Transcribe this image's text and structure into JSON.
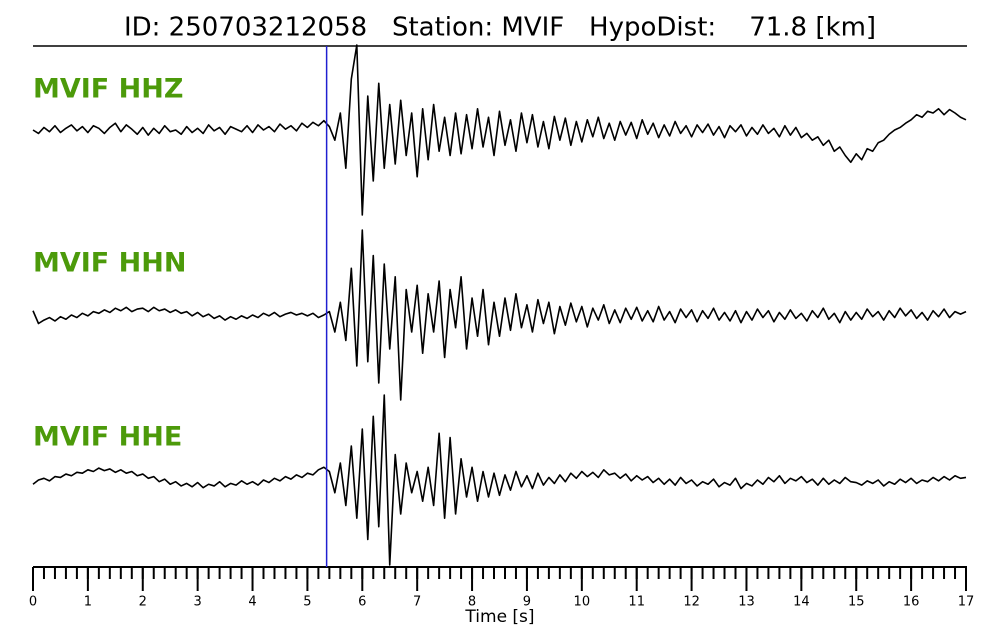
{
  "chart_data": {
    "type": "seismogram",
    "title": "ID: 250703212058   Station: MVIF   HypoDist:    71.8 [km]",
    "xlabel": "Time [s]",
    "xlim": [
      0,
      17
    ],
    "xticks": [
      0,
      1,
      2,
      3,
      4,
      5,
      6,
      7,
      8,
      9,
      10,
      11,
      12,
      13,
      14,
      15,
      16,
      17
    ],
    "xminor_step": 0.2,
    "ylim": [
      -100,
      100
    ],
    "pick_time": 5.35,
    "pick_color": "#1f1fd0",
    "label_color": "#4c9a0a",
    "x": [
      0,
      0.1,
      0.2,
      0.3,
      0.4,
      0.5,
      0.6,
      0.7,
      0.8,
      0.9,
      1,
      1.1,
      1.2,
      1.3,
      1.4,
      1.5,
      1.6,
      1.7,
      1.8,
      1.9,
      2,
      2.1,
      2.2,
      2.3,
      2.4,
      2.5,
      2.6,
      2.7,
      2.8,
      2.9,
      3,
      3.1,
      3.2,
      3.3,
      3.4,
      3.5,
      3.6,
      3.7,
      3.8,
      3.9,
      4,
      4.1,
      4.2,
      4.3,
      4.4,
      4.5,
      4.6,
      4.7,
      4.8,
      4.9,
      5,
      5.1,
      5.2,
      5.3,
      5.4,
      5.5,
      5.6,
      5.7,
      5.8,
      5.9,
      6,
      6.1,
      6.2,
      6.3,
      6.4,
      6.5,
      6.6,
      6.7,
      6.8,
      6.9,
      7,
      7.1,
      7.2,
      7.3,
      7.4,
      7.5,
      7.6,
      7.7,
      7.8,
      7.9,
      8,
      8.1,
      8.2,
      8.3,
      8.4,
      8.5,
      8.6,
      8.7,
      8.8,
      8.9,
      9,
      9.1,
      9.2,
      9.3,
      9.4,
      9.5,
      9.6,
      9.7,
      9.8,
      9.9,
      10,
      10.1,
      10.2,
      10.3,
      10.4,
      10.5,
      10.6,
      10.7,
      10.8,
      10.9,
      11,
      11.1,
      11.2,
      11.3,
      11.4,
      11.5,
      11.6,
      11.7,
      11.8,
      11.9,
      12,
      12.1,
      12.2,
      12.3,
      12.4,
      12.5,
      12.6,
      12.7,
      12.8,
      12.9,
      13,
      13.1,
      13.2,
      13.3,
      13.4,
      13.5,
      13.6,
      13.7,
      13.8,
      13.9,
      14,
      14.1,
      14.2,
      14.3,
      14.4,
      14.5,
      14.6,
      14.7,
      14.8,
      14.9,
      15,
      15.1,
      15.2,
      15.3,
      15.4,
      15.5,
      15.6,
      15.7,
      15.8,
      15.9,
      16,
      16.1,
      16.2,
      16.3,
      16.4,
      16.5,
      16.6,
      16.7,
      16.8,
      16.9,
      17
    ],
    "series": [
      {
        "name": "MVIF HHZ",
        "color": "#000000",
        "values": [
          0,
          -4,
          3,
          -2,
          5,
          -3,
          2,
          6,
          -1,
          4,
          -3,
          5,
          2,
          -4,
          3,
          8,
          -2,
          6,
          1,
          -5,
          3,
          -6,
          2,
          -4,
          5,
          -2,
          0,
          -5,
          4,
          -3,
          2,
          -4,
          6,
          -1,
          3,
          -5,
          4,
          1,
          -2,
          5,
          -3,
          6,
          0,
          4,
          -2,
          7,
          1,
          5,
          -1,
          8,
          3,
          9,
          5,
          11,
          4,
          -12,
          20,
          -45,
          60,
          100,
          -100,
          40,
          -60,
          55,
          -45,
          30,
          -40,
          35,
          -30,
          20,
          -55,
          25,
          -35,
          30,
          -25,
          15,
          -30,
          20,
          -28,
          18,
          -22,
          25,
          -20,
          15,
          -30,
          22,
          -18,
          12,
          -25,
          20,
          -15,
          18,
          -20,
          10,
          -22,
          16,
          -12,
          14,
          -18,
          10,
          -14,
          12,
          -8,
          15,
          -10,
          8,
          -12,
          10,
          -6,
          9,
          -10,
          12,
          -5,
          8,
          -9,
          6,
          -7,
          10,
          -4,
          5,
          -8,
          6,
          -3,
          7,
          -6,
          4,
          -9,
          5,
          -2,
          6,
          -7,
          3,
          -5,
          6,
          -4,
          2,
          -8,
          5,
          -6,
          3,
          -9,
          -4,
          -12,
          -8,
          -18,
          -12,
          -25,
          -20,
          -30,
          -38,
          -28,
          -35,
          -22,
          -25,
          -15,
          -12,
          -5,
          0,
          3,
          8,
          12,
          18,
          15,
          22,
          20,
          25,
          18,
          24,
          20,
          15,
          12
        ]
      },
      {
        "name": "MVIF HHN",
        "color": "#000000",
        "values": [
          5,
          -10,
          -6,
          -3,
          -7,
          -2,
          -5,
          0,
          -3,
          2,
          -1,
          4,
          2,
          6,
          3,
          8,
          5,
          9,
          4,
          7,
          8,
          4,
          9,
          5,
          7,
          3,
          6,
          2,
          4,
          -1,
          3,
          -2,
          1,
          -4,
          -1,
          -6,
          -2,
          -5,
          -1,
          -4,
          0,
          -3,
          2,
          -1,
          3,
          -2,
          1,
          3,
          0,
          2,
          -1,
          2,
          -3,
          0,
          4,
          -20,
          15,
          -30,
          55,
          -60,
          100,
          -55,
          70,
          -80,
          60,
          -40,
          45,
          -100,
          30,
          -20,
          35,
          -45,
          25,
          -20,
          40,
          -50,
          30,
          -15,
          45,
          -40,
          20,
          -25,
          30,
          -35,
          15,
          -25,
          20,
          -18,
          25,
          -15,
          12,
          -20,
          18,
          -10,
          15,
          -22,
          10,
          -12,
          14,
          -8,
          10,
          -14,
          8,
          -6,
          12,
          -10,
          6,
          -9,
          8,
          -5,
          9,
          -7,
          5,
          -8,
          10,
          -6,
          4,
          -9,
          7,
          -3,
          6,
          -8,
          5,
          -4,
          8,
          -6,
          3,
          -7,
          5,
          -9,
          4,
          -6,
          7,
          -3,
          5,
          -8,
          3,
          -5,
          6,
          -4,
          2,
          -7,
          5,
          -3,
          8,
          -5,
          2,
          -9,
          4,
          -6,
          3,
          -5,
          7,
          -2,
          4,
          -6,
          5,
          -3,
          8,
          -1,
          6,
          -4,
          3,
          -6,
          5,
          -2,
          7,
          -3,
          4,
          1,
          4
        ]
      },
      {
        "name": "MVIF HHE",
        "color": "#000000",
        "values": [
          -5,
          0,
          2,
          -1,
          4,
          3,
          7,
          5,
          9,
          8,
          12,
          10,
          14,
          11,
          13,
          9,
          12,
          8,
          10,
          5,
          7,
          2,
          4,
          -2,
          1,
          -5,
          -2,
          -7,
          -4,
          -8,
          -3,
          -9,
          -5,
          -7,
          -2,
          -8,
          -4,
          -6,
          -1,
          -5,
          -2,
          -6,
          0,
          -3,
          2,
          -1,
          4,
          1,
          6,
          3,
          8,
          6,
          12,
          15,
          10,
          -15,
          20,
          -30,
          40,
          -45,
          60,
          -70,
          75,
          -55,
          100,
          -100,
          30,
          -40,
          20,
          -15,
          10,
          -25,
          15,
          -30,
          55,
          -45,
          50,
          -40,
          25,
          -20,
          15,
          -25,
          10,
          -20,
          8,
          -18,
          6,
          -12,
          10,
          -8,
          5,
          -10,
          8,
          -6,
          3,
          -4,
          6,
          -2,
          8,
          2,
          10,
          4,
          9,
          3,
          12,
          6,
          8,
          2,
          7,
          -1,
          5,
          0,
          4,
          -3,
          2,
          -5,
          1,
          -6,
          3,
          -4,
          0,
          -7,
          -2,
          -5,
          1,
          -8,
          -3,
          -6,
          2,
          -10,
          -4,
          -7,
          0,
          -5,
          3,
          -2,
          5,
          -4,
          2,
          -1,
          4,
          -3,
          1,
          -6,
          2,
          -5,
          0,
          -4,
          3,
          -2,
          -3,
          -6,
          -1,
          -4,
          0,
          -7,
          -2,
          -5,
          1,
          -3,
          2,
          -4,
          0,
          -2,
          3,
          -1,
          4,
          0,
          5,
          2,
          3
        ]
      }
    ]
  }
}
